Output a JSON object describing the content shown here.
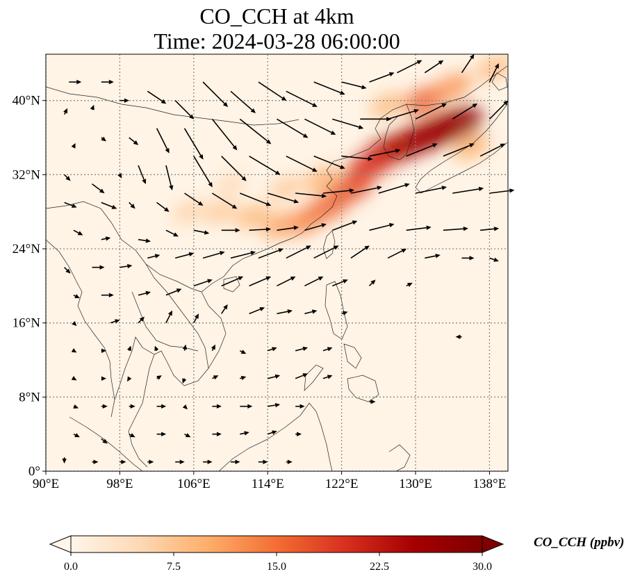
{
  "title_line1": "CO_CCH at 4km",
  "title_line2": "Time: 2024-03-28 06:00:00",
  "map": {
    "lon_range": [
      90,
      140
    ],
    "lat_range": [
      0,
      45
    ],
    "lon_ticks": [
      {
        "value": 90,
        "label": "90°E"
      },
      {
        "value": 98,
        "label": "98°E"
      },
      {
        "value": 106,
        "label": "106°E"
      },
      {
        "value": 114,
        "label": "114°E"
      },
      {
        "value": 122,
        "label": "122°E"
      },
      {
        "value": 130,
        "label": "130°E"
      },
      {
        "value": 138,
        "label": "138°E"
      }
    ],
    "lat_ticks": [
      {
        "value": 0,
        "label": "0°"
      },
      {
        "value": 8,
        "label": "8°N"
      },
      {
        "value": 16,
        "label": "16°N"
      },
      {
        "value": 24,
        "label": "24°N"
      },
      {
        "value": 32,
        "label": "32°N"
      },
      {
        "value": 40,
        "label": "40°N"
      }
    ],
    "gridlines": "dotted",
    "colors": {
      "background": "#fff4e6",
      "low": "#fde3c2",
      "mid": "#f49a5d",
      "high": "#c92a12",
      "max": "#7f0000"
    }
  },
  "co_plume": [
    {
      "lon": 134.5,
      "lat": 37.5,
      "value": 28
    },
    {
      "lon": 132.0,
      "lat": 36.5,
      "value": 27
    },
    {
      "lon": 129.5,
      "lat": 35.5,
      "value": 26
    },
    {
      "lon": 127.0,
      "lat": 34.5,
      "value": 24
    },
    {
      "lon": 125.0,
      "lat": 33.0,
      "value": 20
    },
    {
      "lon": 123.0,
      "lat": 30.5,
      "value": 18
    },
    {
      "lon": 120.5,
      "lat": 28.5,
      "value": 16
    },
    {
      "lon": 118.0,
      "lat": 27.0,
      "value": 14
    },
    {
      "lon": 115.5,
      "lat": 26.5,
      "value": 11
    },
    {
      "lon": 112.5,
      "lat": 27.5,
      "value": 9
    },
    {
      "lon": 109.0,
      "lat": 28.0,
      "value": 7
    },
    {
      "lon": 105.5,
      "lat": 28.0,
      "value": 6
    },
    {
      "lon": 120.0,
      "lat": 31.5,
      "value": 10
    },
    {
      "lon": 116.0,
      "lat": 30.5,
      "value": 7
    },
    {
      "lon": 110.0,
      "lat": 31.0,
      "value": 5
    },
    {
      "lon": 131.0,
      "lat": 40.0,
      "value": 16
    },
    {
      "lon": 134.0,
      "lat": 41.5,
      "value": 12
    },
    {
      "lon": 138.5,
      "lat": 43.5,
      "value": 9
    },
    {
      "lon": 127.0,
      "lat": 39.5,
      "value": 9
    },
    {
      "lon": 136.0,
      "lat": 35.0,
      "value": 10
    }
  ],
  "wind_vectors": [
    {
      "lon": 92.5,
      "lat": 42,
      "u": 2,
      "v": 0
    },
    {
      "lon": 96,
      "lat": 42,
      "u": 2,
      "v": 0
    },
    {
      "lon": 92,
      "lat": 38.5,
      "u": 0.5,
      "v": 1
    },
    {
      "lon": 95,
      "lat": 39,
      "u": 0.3,
      "v": 0.8
    },
    {
      "lon": 98,
      "lat": 40,
      "u": 1.5,
      "v": 0
    },
    {
      "lon": 101,
      "lat": 41,
      "u": 3,
      "v": -2
    },
    {
      "lon": 104,
      "lat": 40,
      "u": 3,
      "v": -3
    },
    {
      "lon": 107,
      "lat": 42,
      "u": 4,
      "v": -4
    },
    {
      "lon": 110,
      "lat": 41,
      "u": 4,
      "v": -3.5
    },
    {
      "lon": 113,
      "lat": 42,
      "u": 4.5,
      "v": -3
    },
    {
      "lon": 116,
      "lat": 41,
      "u": 5,
      "v": -2.5
    },
    {
      "lon": 119,
      "lat": 42,
      "u": 5,
      "v": -2
    },
    {
      "lon": 122,
      "lat": 42,
      "u": 4,
      "v": -1
    },
    {
      "lon": 125,
      "lat": 42,
      "u": 4,
      "v": 1.5
    },
    {
      "lon": 128,
      "lat": 43,
      "u": 4,
      "v": 2
    },
    {
      "lon": 131,
      "lat": 43,
      "u": 3,
      "v": 2
    },
    {
      "lon": 135,
      "lat": 43,
      "u": 2,
      "v": 3
    },
    {
      "lon": 138,
      "lat": 42,
      "u": 1.5,
      "v": 3
    },
    {
      "lon": 93,
      "lat": 35,
      "u": 0.3,
      "v": 0.6
    },
    {
      "lon": 96,
      "lat": 36,
      "u": 0.8,
      "v": -0.6
    },
    {
      "lon": 99,
      "lat": 36,
      "u": 1.5,
      "v": -1.2
    },
    {
      "lon": 102,
      "lat": 37,
      "u": 2,
      "v": -4
    },
    {
      "lon": 105,
      "lat": 37,
      "u": 3,
      "v": -5
    },
    {
      "lon": 108,
      "lat": 38,
      "u": 4,
      "v": -5
    },
    {
      "lon": 111,
      "lat": 38,
      "u": 5,
      "v": -4
    },
    {
      "lon": 115,
      "lat": 38,
      "u": 5,
      "v": -3
    },
    {
      "lon": 118,
      "lat": 38,
      "u": 5,
      "v": -2.5
    },
    {
      "lon": 121,
      "lat": 38,
      "u": 5,
      "v": -1.5
    },
    {
      "lon": 124,
      "lat": 38,
      "u": 5,
      "v": 0
    },
    {
      "lon": 127,
      "lat": 38,
      "u": 5,
      "v": 1.5
    },
    {
      "lon": 130,
      "lat": 38,
      "u": 5,
      "v": 2.5
    },
    {
      "lon": 134,
      "lat": 38,
      "u": 4,
      "v": 2.5
    },
    {
      "lon": 138,
      "lat": 38,
      "u": 3,
      "v": 3
    },
    {
      "lon": 92,
      "lat": 32,
      "u": 1,
      "v": -1
    },
    {
      "lon": 95,
      "lat": 31,
      "u": 2,
      "v": -1.5
    },
    {
      "lon": 98,
      "lat": 32,
      "u": 0.3,
      "v": -0.6
    },
    {
      "lon": 100,
      "lat": 33,
      "u": 1.2,
      "v": -3
    },
    {
      "lon": 103,
      "lat": 33,
      "u": 1,
      "v": -4
    },
    {
      "lon": 106,
      "lat": 34,
      "u": 3,
      "v": -5
    },
    {
      "lon": 109,
      "lat": 34,
      "u": 4,
      "v": -4
    },
    {
      "lon": 112,
      "lat": 34,
      "u": 5,
      "v": -3
    },
    {
      "lon": 116,
      "lat": 34,
      "u": 5,
      "v": -2.5
    },
    {
      "lon": 119,
      "lat": 34,
      "u": 5,
      "v": -2
    },
    {
      "lon": 122,
      "lat": 34,
      "u": 5,
      "v": -0.5
    },
    {
      "lon": 125,
      "lat": 34,
      "u": 5,
      "v": 1
    },
    {
      "lon": 129,
      "lat": 34,
      "u": 5,
      "v": 2
    },
    {
      "lon": 133,
      "lat": 34,
      "u": 5,
      "v": 2
    },
    {
      "lon": 137,
      "lat": 34,
      "u": 4,
      "v": 2
    },
    {
      "lon": 92,
      "lat": 29,
      "u": 2,
      "v": -0.8
    },
    {
      "lon": 96,
      "lat": 29,
      "u": 2.5,
      "v": -1
    },
    {
      "lon": 99,
      "lat": 29,
      "u": 1,
      "v": -1
    },
    {
      "lon": 102,
      "lat": 29,
      "u": 2,
      "v": -1.5
    },
    {
      "lon": 105,
      "lat": 30,
      "u": 3,
      "v": -2
    },
    {
      "lon": 108,
      "lat": 30,
      "u": 4,
      "v": -2.5
    },
    {
      "lon": 111,
      "lat": 30,
      "u": 5,
      "v": -2
    },
    {
      "lon": 114,
      "lat": 30,
      "u": 5,
      "v": -1.5
    },
    {
      "lon": 117,
      "lat": 30,
      "u": 5,
      "v": -0.5
    },
    {
      "lon": 120,
      "lat": 30,
      "u": 5,
      "v": 0.5
    },
    {
      "lon": 123,
      "lat": 30,
      "u": 5,
      "v": 1
    },
    {
      "lon": 126,
      "lat": 30,
      "u": 5,
      "v": 1.5
    },
    {
      "lon": 130,
      "lat": 30,
      "u": 5,
      "v": 1
    },
    {
      "lon": 134,
      "lat": 30,
      "u": 5,
      "v": 0.8
    },
    {
      "lon": 138,
      "lat": 30,
      "u": 4,
      "v": 0.5
    },
    {
      "lon": 93,
      "lat": 26,
      "u": 1.5,
      "v": -0.8
    },
    {
      "lon": 96,
      "lat": 25,
      "u": 1.5,
      "v": 0.3
    },
    {
      "lon": 100,
      "lat": 25,
      "u": 2,
      "v": -0.3
    },
    {
      "lon": 103,
      "lat": 26,
      "u": 2,
      "v": -1
    },
    {
      "lon": 106,
      "lat": 26,
      "u": 2.5,
      "v": -0.5
    },
    {
      "lon": 109,
      "lat": 26,
      "u": 3,
      "v": 0
    },
    {
      "lon": 112,
      "lat": 26,
      "u": 3.5,
      "v": 0.2
    },
    {
      "lon": 115,
      "lat": 26,
      "u": 3.5,
      "v": 0.5
    },
    {
      "lon": 118,
      "lat": 26,
      "u": 3.5,
      "v": 1
    },
    {
      "lon": 121,
      "lat": 26,
      "u": 4,
      "v": 1.5
    },
    {
      "lon": 125,
      "lat": 26,
      "u": 4,
      "v": 1
    },
    {
      "lon": 129,
      "lat": 26,
      "u": 4,
      "v": 0.5
    },
    {
      "lon": 133,
      "lat": 26,
      "u": 4,
      "v": 0.3
    },
    {
      "lon": 137,
      "lat": 26,
      "u": 3,
      "v": 0.3
    },
    {
      "lon": 92,
      "lat": 22,
      "u": 1,
      "v": -1
    },
    {
      "lon": 95,
      "lat": 22,
      "u": 2,
      "v": 0
    },
    {
      "lon": 98,
      "lat": 22,
      "u": 2,
      "v": 0.3
    },
    {
      "lon": 101,
      "lat": 23,
      "u": 2,
      "v": 0.5
    },
    {
      "lon": 104,
      "lat": 23,
      "u": 3,
      "v": 0.8
    },
    {
      "lon": 107,
      "lat": 23,
      "u": 3.5,
      "v": 1
    },
    {
      "lon": 110,
      "lat": 23,
      "u": 4,
      "v": 1
    },
    {
      "lon": 113,
      "lat": 23,
      "u": 4,
      "v": 1.5
    },
    {
      "lon": 116,
      "lat": 23,
      "u": 4,
      "v": 2
    },
    {
      "lon": 119,
      "lat": 23,
      "u": 4,
      "v": 2
    },
    {
      "lon": 123,
      "lat": 23,
      "u": 3,
      "v": 2
    },
    {
      "lon": 127,
      "lat": 23,
      "u": 3,
      "v": 1.5
    },
    {
      "lon": 131,
      "lat": 23,
      "u": 2.5,
      "v": 0.5
    },
    {
      "lon": 135,
      "lat": 23,
      "u": 2,
      "v": 0
    },
    {
      "lon": 138,
      "lat": 23,
      "u": 1.5,
      "v": -0.5
    },
    {
      "lon": 93,
      "lat": 19,
      "u": 1,
      "v": -0.5
    },
    {
      "lon": 96,
      "lat": 19,
      "u": 2,
      "v": 0
    },
    {
      "lon": 100,
      "lat": 19,
      "u": 2,
      "v": 0.5
    },
    {
      "lon": 103,
      "lat": 19,
      "u": 2.5,
      "v": 1
    },
    {
      "lon": 106,
      "lat": 20,
      "u": 3,
      "v": 1
    },
    {
      "lon": 109,
      "lat": 20,
      "u": 3.5,
      "v": 1.5
    },
    {
      "lon": 112,
      "lat": 20,
      "u": 3.5,
      "v": 1.5
    },
    {
      "lon": 115,
      "lat": 20,
      "u": 3,
      "v": 1.5
    },
    {
      "lon": 118,
      "lat": 20,
      "u": 3,
      "v": 1.5
    },
    {
      "lon": 121,
      "lat": 20,
      "u": 2.5,
      "v": 1
    },
    {
      "lon": 125,
      "lat": 20,
      "u": 1,
      "v": 1
    },
    {
      "lon": 129,
      "lat": 20,
      "u": 1,
      "v": 0.5
    },
    {
      "lon": 93,
      "lat": 16,
      "u": 0.5,
      "v": -0.5
    },
    {
      "lon": 97,
      "lat": 16,
      "u": 1.5,
      "v": 0.5
    },
    {
      "lon": 100,
      "lat": 16,
      "u": 1,
      "v": 1
    },
    {
      "lon": 103,
      "lat": 16,
      "u": 1,
      "v": 2
    },
    {
      "lon": 106,
      "lat": 16,
      "u": 0.8,
      "v": 1.5
    },
    {
      "lon": 109,
      "lat": 17,
      "u": 1,
      "v": 1.5
    },
    {
      "lon": 112,
      "lat": 17,
      "u": 2.5,
      "v": 1
    },
    {
      "lon": 115,
      "lat": 17,
      "u": 2.5,
      "v": 0.5
    },
    {
      "lon": 118,
      "lat": 17,
      "u": 2,
      "v": 0.5
    },
    {
      "lon": 122,
      "lat": 17,
      "u": 1,
      "v": 0.3
    },
    {
      "lon": 135,
      "lat": 14.5,
      "u": -1,
      "v": 0
    },
    {
      "lon": 93,
      "lat": 13,
      "u": 0.5,
      "v": -0.3
    },
    {
      "lon": 96,
      "lat": 13,
      "u": 0.8,
      "v": 0
    },
    {
      "lon": 99,
      "lat": 13,
      "u": 0.3,
      "v": 0.8
    },
    {
      "lon": 102,
      "lat": 13,
      "u": -0.3,
      "v": 0.8
    },
    {
      "lon": 105,
      "lat": 13,
      "u": 0.2,
      "v": 1
    },
    {
      "lon": 108,
      "lat": 13,
      "u": 0.5,
      "v": 1
    },
    {
      "lon": 111,
      "lat": 13,
      "u": 1,
      "v": -0.5
    },
    {
      "lon": 114,
      "lat": 13,
      "u": 1.5,
      "v": 0.5
    },
    {
      "lon": 117,
      "lat": 13,
      "u": 2,
      "v": 0.5
    },
    {
      "lon": 120,
      "lat": 13,
      "u": 1.5,
      "v": 0.5
    },
    {
      "lon": 93,
      "lat": 10,
      "u": 0.5,
      "v": -0.3
    },
    {
      "lon": 96,
      "lat": 10,
      "u": 0.8,
      "v": 0
    },
    {
      "lon": 99,
      "lat": 10,
      "u": -0.3,
      "v": -0.5
    },
    {
      "lon": 102,
      "lat": 10,
      "u": 0.8,
      "v": 0.5
    },
    {
      "lon": 105,
      "lat": 10,
      "u": -0.3,
      "v": -0.8
    },
    {
      "lon": 108,
      "lat": 10,
      "u": 1,
      "v": 0.5
    },
    {
      "lon": 111,
      "lat": 10,
      "u": 1,
      "v": 0.3
    },
    {
      "lon": 114,
      "lat": 10,
      "u": 2,
      "v": 0.5
    },
    {
      "lon": 117,
      "lat": 10,
      "u": 2,
      "v": 0.8
    },
    {
      "lon": 120,
      "lat": 10,
      "u": 1.5,
      "v": 0.5
    },
    {
      "lon": 93,
      "lat": 7,
      "u": 0.8,
      "v": -0.3
    },
    {
      "lon": 96,
      "lat": 7,
      "u": 1,
      "v": 0
    },
    {
      "lon": 99,
      "lat": 7,
      "u": 1,
      "v": 0
    },
    {
      "lon": 102,
      "lat": 7,
      "u": 1.5,
      "v": 0
    },
    {
      "lon": 105,
      "lat": 7,
      "u": 0.5,
      "v": -0.5
    },
    {
      "lon": 108,
      "lat": 7,
      "u": 1.5,
      "v": 0
    },
    {
      "lon": 111,
      "lat": 7,
      "u": 2,
      "v": 0
    },
    {
      "lon": 114,
      "lat": 7,
      "u": 2,
      "v": 0.3
    },
    {
      "lon": 117,
      "lat": 7,
      "u": 1.5,
      "v": 0
    },
    {
      "lon": 125,
      "lat": 7.5,
      "u": 1,
      "v": 0
    },
    {
      "lon": 93,
      "lat": 4,
      "u": 1,
      "v": -0.5
    },
    {
      "lon": 96,
      "lat": 3.5,
      "u": 1,
      "v": -0.8
    },
    {
      "lon": 99,
      "lat": 4,
      "u": 1,
      "v": -0.5
    },
    {
      "lon": 102,
      "lat": 4,
      "u": 1.5,
      "v": 0
    },
    {
      "lon": 105,
      "lat": 4,
      "u": 1,
      "v": -0.5
    },
    {
      "lon": 108,
      "lat": 4,
      "u": 1.5,
      "v": 0
    },
    {
      "lon": 111,
      "lat": 4,
      "u": 1.5,
      "v": 0.3
    },
    {
      "lon": 114,
      "lat": 4,
      "u": 1.5,
      "v": 0.5
    },
    {
      "lon": 117,
      "lat": 4,
      "u": 1,
      "v": 0
    },
    {
      "lon": 92,
      "lat": 1.5,
      "u": 0,
      "v": -1
    },
    {
      "lon": 95,
      "lat": 1,
      "u": 1,
      "v": 0
    },
    {
      "lon": 98,
      "lat": 1,
      "u": 1,
      "v": 0
    },
    {
      "lon": 101,
      "lat": 1,
      "u": 1,
      "v": 0
    },
    {
      "lon": 104,
      "lat": 1,
      "u": 1.5,
      "v": 0
    },
    {
      "lon": 107,
      "lat": 1,
      "u": 1.5,
      "v": 0
    },
    {
      "lon": 110,
      "lat": 1,
      "u": 1.5,
      "v": 0
    },
    {
      "lon": 113,
      "lat": 1,
      "u": 1.5,
      "v": 0
    },
    {
      "lon": 116,
      "lat": 1,
      "u": 1,
      "v": 0
    }
  ],
  "colorbar": {
    "label": "CO_CCH (ppbv)",
    "min": 0,
    "max": 30,
    "ticks": [
      {
        "value": 0,
        "label": "0.0"
      },
      {
        "value": 7.5,
        "label": "7.5"
      },
      {
        "value": 15,
        "label": "15.0"
      },
      {
        "value": 22.5,
        "label": "22.5"
      },
      {
        "value": 30,
        "label": "30.0"
      }
    ],
    "extend": "both",
    "colors": [
      "#fff5eb",
      "#fdd9b4",
      "#fdae6b",
      "#f36e32",
      "#d7301f",
      "#a50000",
      "#7f0000"
    ]
  }
}
